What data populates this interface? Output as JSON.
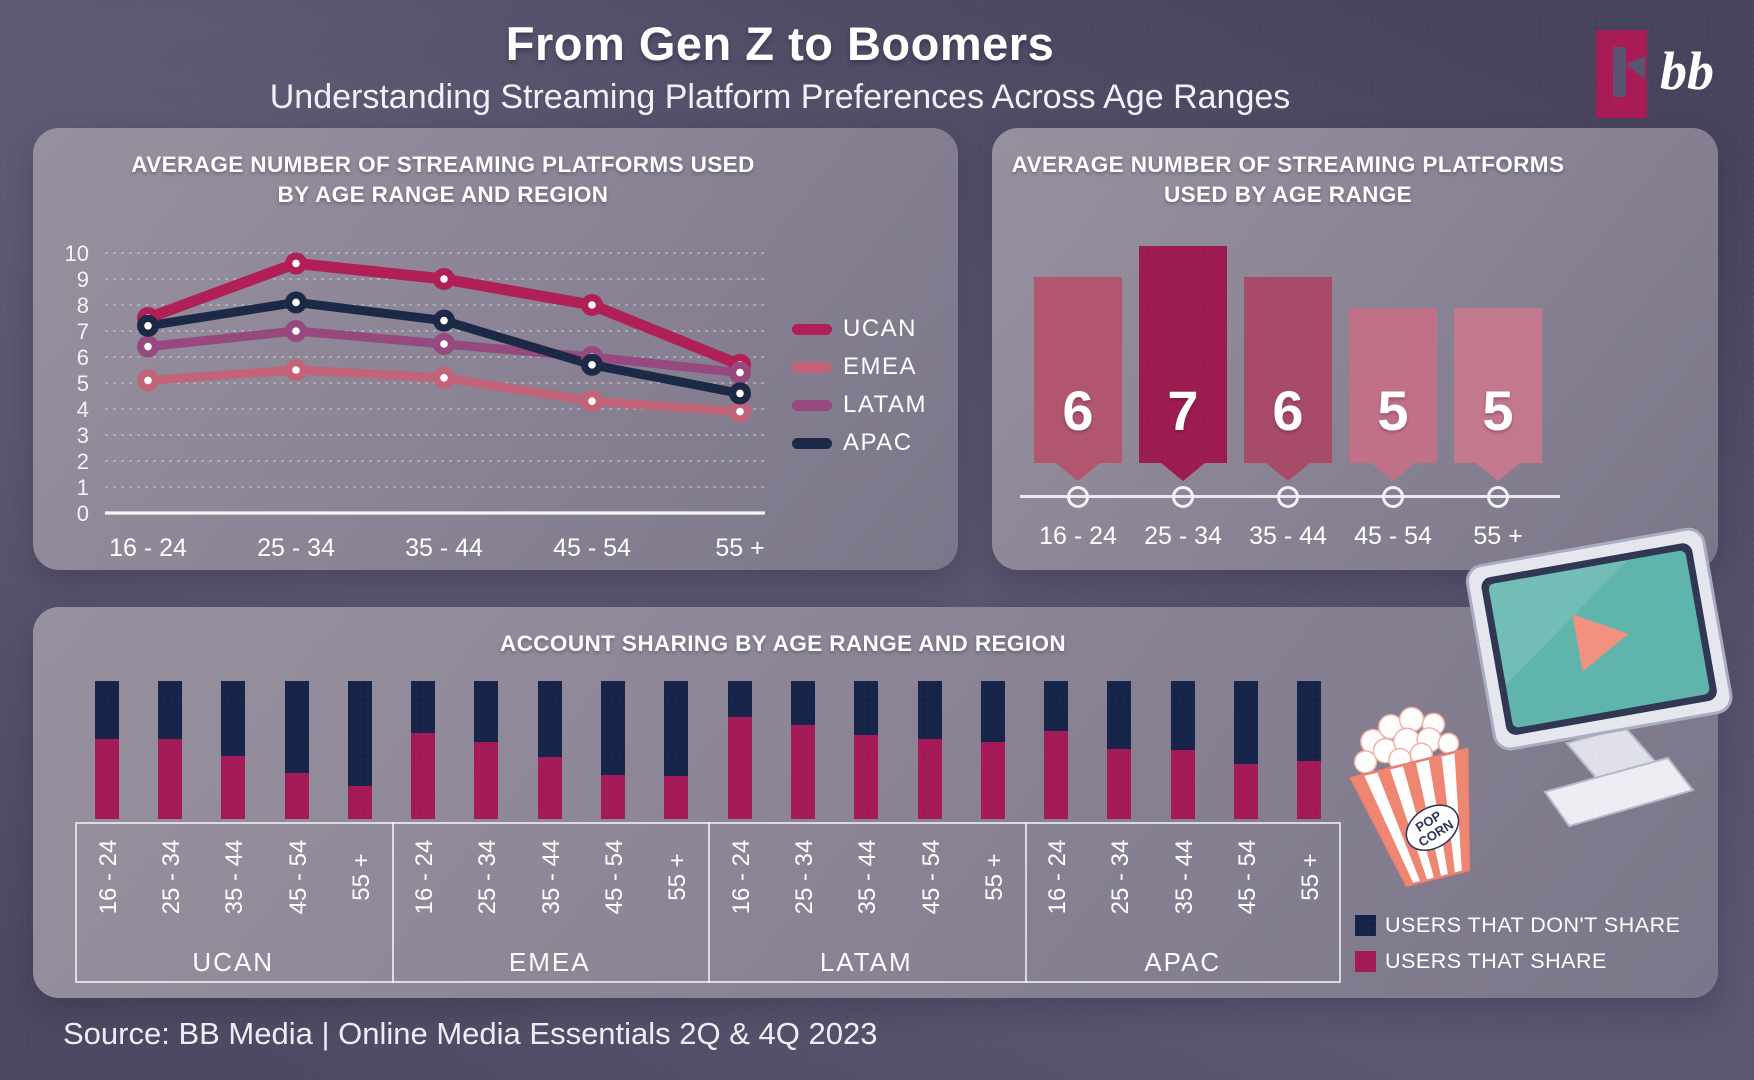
{
  "header": {
    "title": "From Gen Z to Boomers",
    "subtitle": "Understanding Streaming Platform Preferences Across Age Ranges",
    "logo_text": "bb"
  },
  "footer": {
    "source": "Source: BB Media | Online Media Essentials 2Q & 4Q 2023"
  },
  "age_ranges": [
    "16 - 24",
    "25 - 34",
    "35 - 44",
    "45 - 54",
    "55 +"
  ],
  "colors": {
    "background": "#5b5671",
    "panel": "#8b8596",
    "ucan": "#b01f56",
    "emea": "#c36379",
    "latam": "#95497f",
    "apac": "#1b2946",
    "dont_share": "#16244a",
    "share": "#a41a58",
    "screen_teal": "#5fb5ac",
    "play_coral": "#f29180",
    "logo_crimson": "#a81b55"
  },
  "chart_data": [
    {
      "type": "line",
      "title": "AVERAGE NUMBER OF STREAMING PLATFORMS USED BY AGE RANGE AND REGION",
      "title_lines": [
        "AVERAGE NUMBER OF STREAMING PLATFORMS USED",
        "BY AGE RANGE AND REGION"
      ],
      "categories": [
        "16 - 24",
        "25 - 34",
        "35 - 44",
        "45 - 54",
        "55 +"
      ],
      "series": [
        {
          "name": "UCAN",
          "color": "#b01f56",
          "values": [
            7.5,
            9.6,
            9.0,
            8.0,
            5.7
          ]
        },
        {
          "name": "EMEA",
          "color": "#c36379",
          "values": [
            5.1,
            5.5,
            5.2,
            4.3,
            3.9
          ]
        },
        {
          "name": "LATAM",
          "color": "#95497f",
          "values": [
            6.4,
            7.0,
            6.5,
            6.0,
            5.4
          ]
        },
        {
          "name": "APAC",
          "color": "#1b2946",
          "values": [
            7.2,
            8.1,
            7.4,
            5.7,
            4.6
          ]
        }
      ],
      "z_order": [
        "EMEA",
        "UCAN",
        "LATAM",
        "APAC"
      ],
      "ylim": [
        0,
        10
      ],
      "ytick_step": 1,
      "grid": true,
      "legend_position": "right"
    },
    {
      "type": "bar",
      "title": "AVERAGE NUMBER OF STREAMING PLATFORMS USED BY AGE RANGE",
      "title_lines": [
        "AVERAGE NUMBER OF STREAMING PLATFORMS",
        "USED BY AGE RANGE"
      ],
      "categories": [
        "16 - 24",
        "25 - 34",
        "35 - 44",
        "45 - 54",
        "55 +"
      ],
      "values": [
        6,
        7,
        6,
        5,
        5
      ],
      "bar_colors": [
        "#b2566f",
        "#9c1c52",
        "#a84b68",
        "#c17187",
        "#c3798d"
      ]
    },
    {
      "type": "stacked-bar",
      "title": "ACCOUNT SHARING BY AGE RANGE AND REGION",
      "regions": [
        "UCAN",
        "EMEA",
        "LATAM",
        "APAC"
      ],
      "categories": [
        "16 - 24",
        "25 - 34",
        "35 - 44",
        "45 - 54",
        "55 +"
      ],
      "unit": "percent of users",
      "legend": [
        {
          "label": "USERS THAT DON'T SHARE",
          "color": "#16244a"
        },
        {
          "label": "USERS THAT SHARE",
          "color": "#a41a58"
        }
      ],
      "series": [
        {
          "region": "UCAN",
          "share_pct": [
            58,
            58,
            46,
            33,
            24
          ]
        },
        {
          "region": "EMEA",
          "share_pct": [
            62,
            56,
            45,
            32,
            31
          ]
        },
        {
          "region": "LATAM",
          "share_pct": [
            74,
            68,
            61,
            58,
            56
          ]
        },
        {
          "region": "APAC",
          "share_pct": [
            64,
            51,
            50,
            40,
            42
          ]
        }
      ]
    }
  ]
}
